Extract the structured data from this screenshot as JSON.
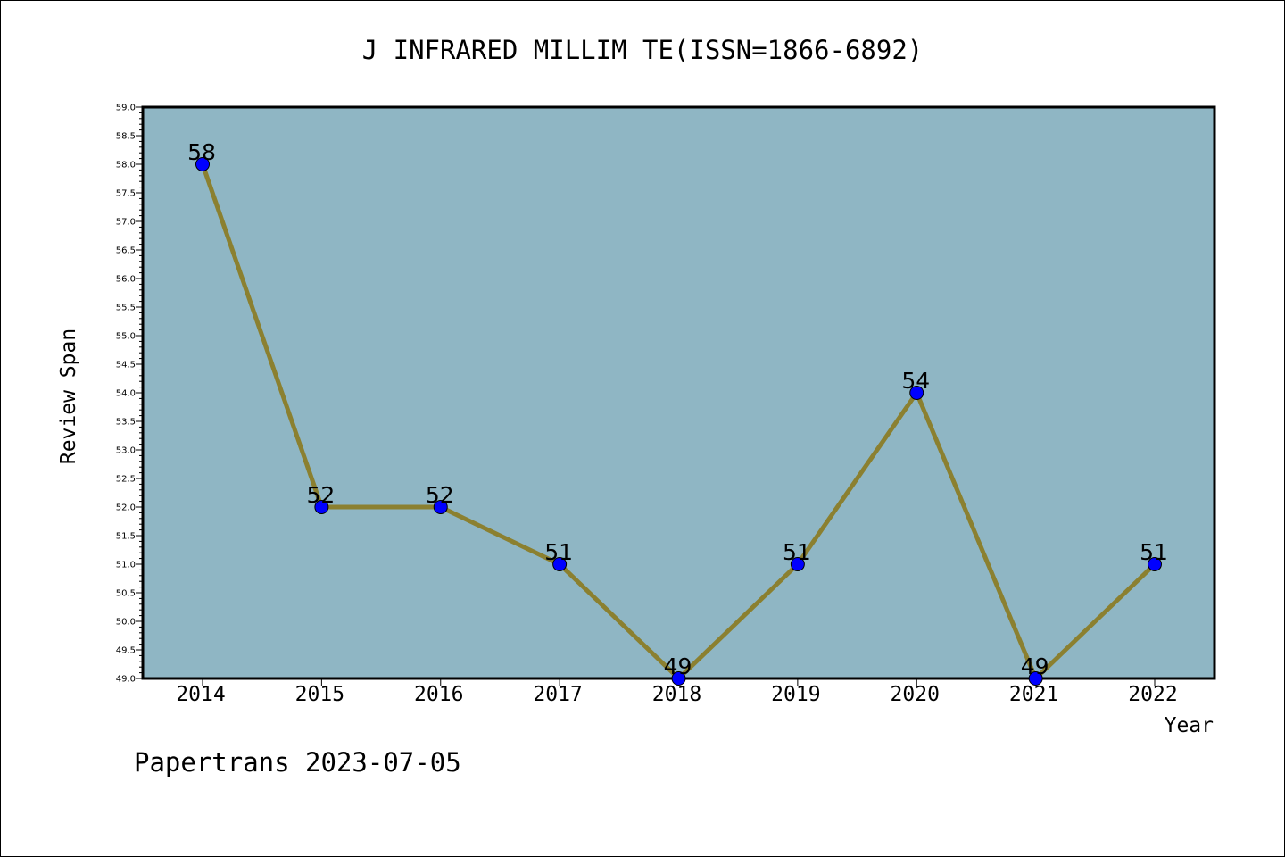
{
  "chart_data": {
    "type": "line",
    "title": "J INFRARED MILLIM TE(ISSN=1866-6892)",
    "xlabel": "Year",
    "ylabel": "Review Span",
    "categories": [
      "2014",
      "2015",
      "2016",
      "2017",
      "2018",
      "2019",
      "2020",
      "2021",
      "2022"
    ],
    "series": [
      {
        "values": [
          58,
          52,
          52,
          51,
          49,
          51,
          54,
          49,
          51
        ]
      }
    ],
    "data_labels": [
      "58",
      "52",
      "52",
      "51",
      "49",
      "51",
      "54",
      "49",
      "51"
    ],
    "ylim": [
      49.0,
      59.0
    ],
    "yticks": [
      "49.0",
      "49.5",
      "50.0",
      "50.5",
      "51.0",
      "51.5",
      "52.0",
      "52.5",
      "53.0",
      "53.5",
      "54.0",
      "54.5",
      "55.0",
      "55.5",
      "56.0",
      "56.5",
      "57.0",
      "57.5",
      "58.0",
      "58.5",
      "59.0"
    ],
    "grid": false,
    "colors": {
      "plot_background": "#8fb6c4",
      "line": "#8b8030",
      "marker": "#0000ff"
    }
  },
  "footer": {
    "watermark": "Papertrans 2023-07-05"
  }
}
